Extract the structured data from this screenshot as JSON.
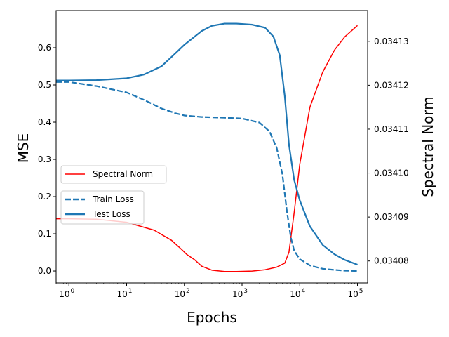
{
  "chart_data": {
    "type": "line",
    "xlabel": "Epochs",
    "ylabel_left": "MSE",
    "ylabel_right": "Spectral Norm",
    "xscale": "log",
    "xlim": [
      0.6,
      150000
    ],
    "ylim_left": [
      -0.032,
      0.7
    ],
    "ylim_right": [
      0.034075,
      0.034137
    ],
    "x_ticks": [
      {
        "value": 1,
        "base": "10",
        "exp": "0"
      },
      {
        "value": 10,
        "base": "10",
        "exp": "1"
      },
      {
        "value": 100,
        "base": "10",
        "exp": "2"
      },
      {
        "value": 1000,
        "base": "10",
        "exp": "3"
      },
      {
        "value": 10000,
        "base": "10",
        "exp": "4"
      },
      {
        "value": 100000,
        "base": "10",
        "exp": "5"
      }
    ],
    "left_ticks": [
      {
        "value": 0.0,
        "label": "0.0"
      },
      {
        "value": 0.1,
        "label": "0.1"
      },
      {
        "value": 0.2,
        "label": "0.2"
      },
      {
        "value": 0.3,
        "label": "0.3"
      },
      {
        "value": 0.4,
        "label": "0.4"
      },
      {
        "value": 0.5,
        "label": "0.5"
      },
      {
        "value": 0.6,
        "label": "0.6"
      }
    ],
    "right_ticks": [
      {
        "value": 0.03408,
        "label": "0.03408"
      },
      {
        "value": 0.03409,
        "label": "0.03409"
      },
      {
        "value": 0.0341,
        "label": "0.03410"
      },
      {
        "value": 0.03411,
        "label": "0.03411"
      },
      {
        "value": 0.03412,
        "label": "0.03412"
      },
      {
        "value": 0.03413,
        "label": "0.03413"
      }
    ],
    "grid": false,
    "series": [
      {
        "name": "Spectral Norm",
        "axis": "right",
        "color": "#ff0000",
        "style": "solid",
        "x": [
          0.6,
          1,
          3,
          10,
          30,
          60,
          90,
          110,
          150,
          200,
          300,
          500,
          800,
          1500,
          2500,
          4000,
          5500,
          6500,
          8000,
          10000,
          15000,
          25000,
          40000,
          60000,
          100000
        ],
        "y": [
          0.0340896,
          0.0340896,
          0.0340895,
          0.0340888,
          0.034087,
          0.0340847,
          0.0340826,
          0.0340815,
          0.0340803,
          0.0340788,
          0.0340779,
          0.0340776,
          0.0340776,
          0.0340777,
          0.034078,
          0.0340786,
          0.0340795,
          0.034082,
          0.034091,
          0.034102,
          0.034115,
          0.034123,
          0.034128,
          0.034131,
          0.0341336
        ]
      },
      {
        "name": "Train Loss",
        "axis": "left",
        "color": "#1f77b4",
        "style": "dashed",
        "x": [
          0.6,
          1,
          3,
          10,
          20,
          40,
          70,
          100,
          200,
          500,
          1000,
          2000,
          3000,
          4000,
          5000,
          6000,
          7000,
          8000,
          10000,
          15000,
          25000,
          40000,
          60000,
          100000
        ],
        "y": [
          0.508,
          0.508,
          0.497,
          0.48,
          0.46,
          0.437,
          0.424,
          0.418,
          0.414,
          0.412,
          0.41,
          0.399,
          0.375,
          0.33,
          0.26,
          0.16,
          0.09,
          0.055,
          0.032,
          0.015,
          0.006,
          0.003,
          0.001,
          0.0
        ]
      },
      {
        "name": "Test Loss",
        "axis": "left",
        "color": "#1f77b4",
        "style": "solid",
        "x": [
          0.6,
          1,
          3,
          10,
          20,
          40,
          70,
          100,
          200,
          300,
          500,
          800,
          1000,
          1500,
          2500,
          3500,
          4500,
          5500,
          6500,
          8000,
          10000,
          15000,
          25000,
          40000,
          60000,
          100000
        ],
        "y": [
          0.512,
          0.512,
          0.513,
          0.518,
          0.528,
          0.55,
          0.585,
          0.608,
          0.645,
          0.659,
          0.665,
          0.665,
          0.664,
          0.662,
          0.654,
          0.63,
          0.58,
          0.47,
          0.34,
          0.245,
          0.19,
          0.12,
          0.07,
          0.045,
          0.03,
          0.017
        ]
      }
    ],
    "legends": [
      {
        "placement": "center-left",
        "entries": [
          "Spectral Norm"
        ]
      },
      {
        "placement": "center-left-lower",
        "entries": [
          "Train Loss",
          "Test Loss"
        ]
      }
    ]
  }
}
